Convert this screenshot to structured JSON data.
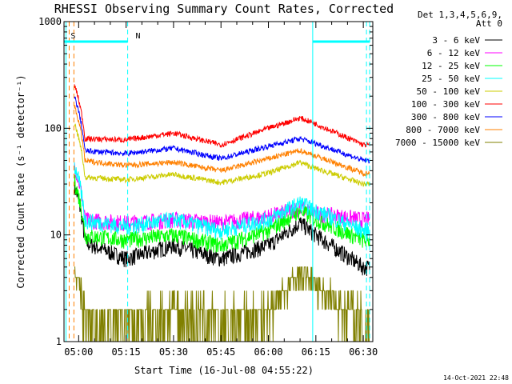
{
  "chart_data": {
    "type": "line",
    "title": "RHESSI Observing Summary Count Rates, Corrected",
    "xlabel": "Start Time (16-Jul-08 04:55:22)",
    "ylabel": "Corrected Count Rate (s⁻¹ detector⁻¹)",
    "y_scale": "log",
    "ylim": [
      1,
      1000
    ],
    "xlim": [
      "04:55:22",
      "06:33:00"
    ],
    "x_tick_labels": [
      "05:00",
      "05:15",
      "05:30",
      "05:45",
      "06:00",
      "06:15",
      "06:30"
    ],
    "y_tick_labels": [
      "1",
      "10",
      "100",
      "1000"
    ],
    "legend_header": [
      "Det 1,3,4,5,6,9,",
      "Att 0"
    ],
    "legend_position": "right",
    "timestamp": "14-Oct-2021 22:48",
    "annotations": [
      {
        "text": "S",
        "time": "04:57:30",
        "y": 650
      },
      {
        "text": "N",
        "time": "05:18:00",
        "y": 650
      }
    ],
    "night_bars": [
      {
        "start": "04:55:22",
        "end": "05:15:30",
        "level": 650
      },
      {
        "start": "06:14:00",
        "end": "06:32:00",
        "level": 650
      }
    ],
    "vlines": [
      {
        "time": "04:56:00",
        "color": "#00ffff",
        "style": "solid"
      },
      {
        "time": "04:57:00",
        "color": "#ff8000",
        "style": "dashed"
      },
      {
        "time": "04:58:30",
        "color": "#ff8000",
        "style": "dashed"
      },
      {
        "time": "05:15:30",
        "color": "#00ffff",
        "style": "dashed"
      },
      {
        "time": "06:14:00",
        "color": "#00ffff",
        "style": "solid"
      },
      {
        "time": "06:31:00",
        "color": "#00ffff",
        "style": "dashed"
      },
      {
        "time": "06:32:00",
        "color": "#00ffff",
        "style": "dashed"
      }
    ],
    "x": [
      "05:00",
      "05:15",
      "05:30",
      "05:45",
      "06:00",
      "06:10",
      "06:15",
      "06:30"
    ],
    "series": [
      {
        "name": "3 - 6 keV",
        "color": "#000000",
        "values": [
          9,
          6,
          8,
          6,
          8,
          13,
          10,
          5
        ]
      },
      {
        "name": "6 - 12 keV",
        "color": "#ff00ff",
        "values": [
          14,
          13,
          14,
          13,
          15,
          18,
          16,
          14
        ]
      },
      {
        "name": "12 - 25 keV",
        "color": "#00ff00",
        "values": [
          10,
          9,
          10,
          8,
          11,
          17,
          14,
          9
        ]
      },
      {
        "name": "25 - 50 keV",
        "color": "#00ffff",
        "values": [
          14,
          12,
          14,
          11,
          14,
          20,
          17,
          11
        ]
      },
      {
        "name": "50 - 100 keV",
        "color": "#cccc00",
        "values": [
          35,
          33,
          37,
          31,
          38,
          48,
          42,
          30
        ]
      },
      {
        "name": "100 - 300 keV",
        "color": "#ff0000",
        "values": [
          80,
          78,
          90,
          70,
          100,
          125,
          110,
          70
        ]
      },
      {
        "name": "300 - 800 keV",
        "color": "#0000ff",
        "values": [
          62,
          58,
          65,
          52,
          68,
          80,
          72,
          50
        ]
      },
      {
        "name": "800 - 7000 keV",
        "color": "#ff8000",
        "values": [
          50,
          45,
          48,
          40,
          52,
          62,
          55,
          38
        ]
      },
      {
        "name": "7000 - 15000 keV",
        "color": "#808000",
        "values": [
          1.5,
          1.5,
          2,
          1.5,
          2,
          4.5,
          3.5,
          1.5
        ]
      }
    ]
  }
}
